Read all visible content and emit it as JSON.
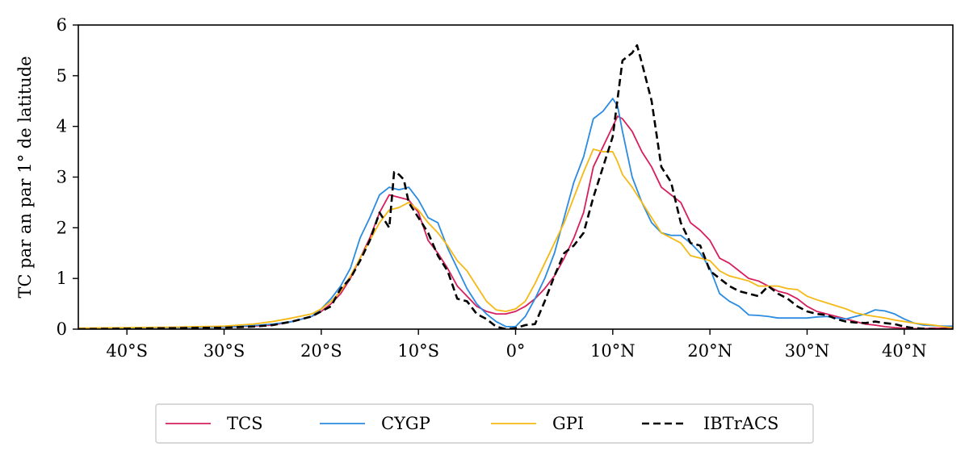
{
  "chart_data": {
    "type": "line",
    "title": "",
    "xlabel": "",
    "ylabel": "TC par an par 1° de latitude",
    "xlim": [
      -45,
      45
    ],
    "ylim": [
      0,
      6
    ],
    "grid": false,
    "legend_position": "bottom-center",
    "xticks": [
      {
        "value": -40,
        "label": "40°S"
      },
      {
        "value": -30,
        "label": "30°S"
      },
      {
        "value": -20,
        "label": "20°S"
      },
      {
        "value": -10,
        "label": "10°S"
      },
      {
        "value": 0,
        "label": "0°"
      },
      {
        "value": 10,
        "label": "10°N"
      },
      {
        "value": 20,
        "label": "20°N"
      },
      {
        "value": 30,
        "label": "30°N"
      },
      {
        "value": 40,
        "label": "40°N"
      }
    ],
    "yticks": [
      {
        "value": 0,
        "label": "0"
      },
      {
        "value": 1,
        "label": "1"
      },
      {
        "value": 2,
        "label": "2"
      },
      {
        "value": 3,
        "label": "3"
      },
      {
        "value": 4,
        "label": "4"
      },
      {
        "value": 5,
        "label": "5"
      },
      {
        "value": 6,
        "label": "6"
      }
    ],
    "series": [
      {
        "name": "TCS",
        "color": "#d6205e",
        "dash": "solid",
        "x": [
          -45,
          -40,
          -35,
          -30,
          -27,
          -25,
          -23,
          -21,
          -20,
          -19,
          -18,
          -17,
          -16,
          -15,
          -14,
          -13,
          -12,
          -11,
          -10,
          -9,
          -8,
          -7,
          -6,
          -5,
          -4,
          -3,
          -2,
          -1,
          0,
          1,
          2,
          3,
          4,
          5,
          6,
          7,
          8,
          9,
          10,
          10.5,
          11,
          12,
          13,
          14,
          15,
          16,
          17,
          18,
          19,
          20,
          21,
          22,
          23,
          24,
          25,
          26,
          27,
          28,
          29,
          30,
          31,
          32,
          33,
          34,
          35,
          36,
          37,
          38,
          39,
          40,
          41,
          42,
          43,
          44,
          45
        ],
        "y": [
          0,
          0.02,
          0.03,
          0.04,
          0.06,
          0.08,
          0.15,
          0.25,
          0.35,
          0.5,
          0.7,
          1.0,
          1.4,
          1.8,
          2.3,
          2.65,
          2.6,
          2.55,
          2.3,
          1.75,
          1.5,
          1.2,
          0.85,
          0.65,
          0.45,
          0.35,
          0.3,
          0.3,
          0.35,
          0.45,
          0.6,
          0.8,
          1.05,
          1.4,
          1.8,
          2.3,
          3.2,
          3.6,
          4.0,
          4.2,
          4.15,
          3.9,
          3.5,
          3.2,
          2.8,
          2.65,
          2.5,
          2.1,
          1.95,
          1.75,
          1.4,
          1.3,
          1.15,
          1.0,
          0.95,
          0.85,
          0.75,
          0.7,
          0.6,
          0.45,
          0.35,
          0.3,
          0.25,
          0.2,
          0.15,
          0.1,
          0.08,
          0.05,
          0.03,
          0.02,
          0.01,
          0.01,
          0.02,
          0.02,
          0.02
        ]
      },
      {
        "name": "CYGP",
        "color": "#2b8be0",
        "dash": "solid",
        "x": [
          -45,
          -40,
          -35,
          -30,
          -27,
          -25,
          -23,
          -21,
          -20,
          -19,
          -18,
          -17,
          -16,
          -15,
          -14,
          -13,
          -12,
          -11,
          -10,
          -9,
          -8,
          -7,
          -6,
          -5,
          -4,
          -3,
          -2,
          -1,
          0,
          1,
          2,
          3,
          4,
          5,
          6,
          7,
          8,
          9,
          10,
          10.5,
          11,
          12,
          13,
          14,
          15,
          16,
          17,
          18,
          19,
          20,
          21,
          22,
          23,
          24,
          25,
          26,
          27,
          28,
          29,
          30,
          31,
          32,
          33,
          34,
          35,
          36,
          37,
          38,
          39,
          40,
          41,
          42,
          43,
          44,
          45
        ],
        "y": [
          0,
          0.02,
          0.03,
          0.04,
          0.07,
          0.1,
          0.15,
          0.25,
          0.4,
          0.6,
          0.85,
          1.2,
          1.8,
          2.2,
          2.65,
          2.8,
          2.75,
          2.8,
          2.55,
          2.2,
          2.1,
          1.6,
          1.2,
          0.8,
          0.5,
          0.3,
          0.15,
          0.05,
          0.05,
          0.25,
          0.6,
          1.0,
          1.5,
          2.2,
          2.9,
          3.4,
          4.15,
          4.3,
          4.55,
          4.4,
          3.9,
          3.0,
          2.5,
          2.1,
          1.9,
          1.85,
          1.85,
          1.7,
          1.5,
          1.2,
          0.7,
          0.55,
          0.45,
          0.28,
          0.27,
          0.25,
          0.22,
          0.22,
          0.22,
          0.22,
          0.24,
          0.25,
          0.22,
          0.2,
          0.25,
          0.3,
          0.38,
          0.36,
          0.3,
          0.2,
          0.12,
          0.08,
          0.07,
          0.06,
          0.06
        ]
      },
      {
        "name": "GPI",
        "color": "#f5b915",
        "dash": "solid",
        "x": [
          -45,
          -40,
          -35,
          -30,
          -27,
          -25,
          -23,
          -21,
          -20,
          -19,
          -18,
          -17,
          -16,
          -15,
          -14,
          -13,
          -12,
          -11,
          -10,
          -9,
          -8,
          -7,
          -6,
          -5,
          -4,
          -3,
          -2,
          -1,
          0,
          1,
          2,
          3,
          4,
          5,
          6,
          7,
          8,
          9,
          10,
          10.5,
          11,
          12,
          13,
          14,
          15,
          16,
          17,
          18,
          19,
          20,
          21,
          22,
          23,
          24,
          25,
          26,
          27,
          28,
          29,
          30,
          31,
          32,
          33,
          34,
          35,
          36,
          37,
          38,
          39,
          40,
          41,
          42,
          43,
          44,
          45
        ],
        "y": [
          0.02,
          0.03,
          0.04,
          0.06,
          0.1,
          0.15,
          0.22,
          0.3,
          0.4,
          0.55,
          0.75,
          1.05,
          1.4,
          1.75,
          2.1,
          2.35,
          2.4,
          2.5,
          2.35,
          2.1,
          1.9,
          1.65,
          1.35,
          1.15,
          0.85,
          0.55,
          0.38,
          0.35,
          0.4,
          0.55,
          0.9,
          1.3,
          1.7,
          2.1,
          2.6,
          3.1,
          3.55,
          3.5,
          3.5,
          3.3,
          3.05,
          2.8,
          2.5,
          2.2,
          1.9,
          1.8,
          1.7,
          1.45,
          1.4,
          1.35,
          1.15,
          1.05,
          1.0,
          0.95,
          0.85,
          0.85,
          0.85,
          0.8,
          0.78,
          0.65,
          0.58,
          0.52,
          0.46,
          0.4,
          0.32,
          0.28,
          0.25,
          0.22,
          0.18,
          0.15,
          0.12,
          0.1,
          0.08,
          0.05,
          0.03
        ]
      },
      {
        "name": "IBTrACS",
        "color": "#000000",
        "dash": "dashed",
        "x": [
          -45,
          -40,
          -35,
          -30,
          -27,
          -25,
          -23,
          -21,
          -20,
          -19,
          -18,
          -17,
          -16,
          -15,
          -14,
          -13,
          -12.5,
          -12,
          -11.5,
          -11,
          -10,
          -9,
          -8,
          -7,
          -6,
          -5,
          -4,
          -3,
          -2,
          -1,
          0,
          1,
          2,
          3,
          4,
          5,
          6,
          7,
          8,
          9,
          10,
          11,
          12,
          12.5,
          13,
          14,
          15,
          16,
          17,
          18,
          19,
          20,
          21,
          22,
          23,
          24,
          25,
          26,
          27,
          28,
          29,
          30,
          31,
          32,
          33,
          34,
          35,
          36,
          37,
          38,
          39,
          40,
          41,
          42,
          43,
          44,
          45
        ],
        "y": [
          0,
          0.01,
          0.02,
          0.03,
          0.05,
          0.08,
          0.15,
          0.25,
          0.35,
          0.45,
          0.8,
          1.0,
          1.35,
          1.75,
          2.3,
          2.0,
          3.1,
          3.05,
          2.95,
          2.5,
          2.2,
          1.9,
          1.45,
          1.15,
          0.6,
          0.55,
          0.3,
          0.2,
          0.05,
          0.0,
          0.02,
          0.08,
          0.1,
          0.55,
          1.05,
          1.5,
          1.65,
          1.9,
          2.6,
          3.2,
          3.8,
          5.3,
          5.45,
          5.6,
          5.25,
          4.5,
          3.2,
          2.9,
          2.1,
          1.7,
          1.65,
          1.15,
          1.0,
          0.85,
          0.75,
          0.7,
          0.65,
          0.85,
          0.7,
          0.6,
          0.45,
          0.35,
          0.3,
          0.28,
          0.2,
          0.15,
          0.13,
          0.12,
          0.15,
          0.12,
          0.1,
          0.05,
          0.02,
          0.01,
          0.0,
          0.0,
          0.0
        ]
      }
    ]
  }
}
